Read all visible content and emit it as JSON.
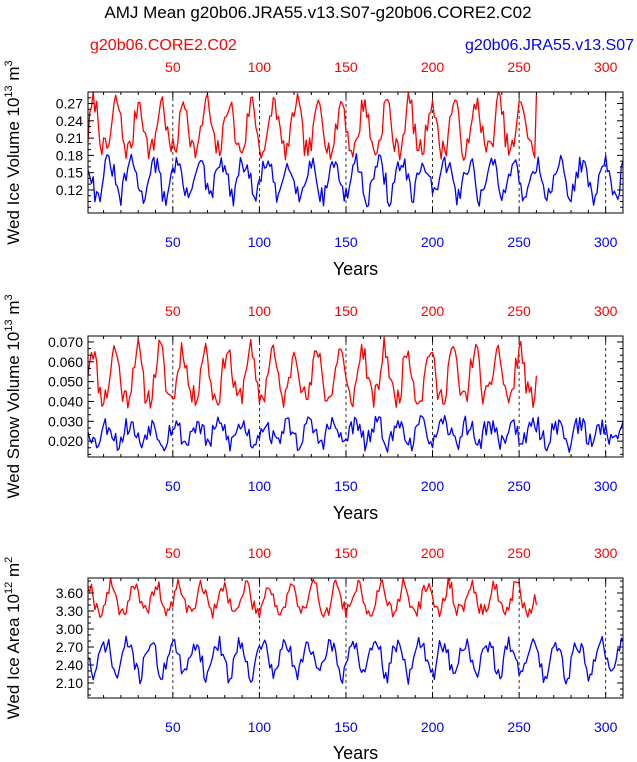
{
  "title": "AMJ Mean g20b06.JRA55.v13.S07-g20b06.CORE2.C02",
  "legend": {
    "red_case": "g20b06.CORE2.C02",
    "blue_case": "g20b06.JRA55.v13.S07"
  },
  "colors": {
    "red": "#ff0000",
    "blue": "#0000ff"
  },
  "chart_data": [
    {
      "type": "line",
      "ylabel_main": "Wed Ice Volume 10",
      "ylabel_exp": "13",
      "ylabel_unit": " m",
      "ylabel_unit_exp": "3",
      "xlabel": "Years",
      "xlim": [
        1,
        310
      ],
      "ylim": [
        0.08,
        0.29
      ],
      "x_ticks": [
        50,
        100,
        150,
        200,
        250,
        300
      ],
      "x_tick_labels": [
        "50",
        "100",
        "150",
        "200",
        "250",
        "300"
      ],
      "y_ticks": [
        0.12,
        0.15,
        0.18,
        0.21,
        0.24,
        0.27
      ],
      "y_tick_labels": [
        "0.12",
        "0.15",
        "0.18",
        "0.21",
        "0.24",
        "0.27"
      ],
      "series": [
        {
          "name": "g20b06.CORE2.C02",
          "color": "#ff0000",
          "x_end": 260,
          "base": 0.19,
          "amp": 0.085,
          "period": 13,
          "phase": 2,
          "noise": 0.02,
          "seed": 7,
          "floor": 0.14,
          "final": 0.285
        },
        {
          "name": "g20b06.JRA55.v13.S07",
          "color": "#0000ff",
          "x_end": 310,
          "base": 0.165,
          "amp": -0.06,
          "period": 13,
          "phase": 0,
          "noise": 0.018,
          "seed": 31,
          "floor": 0.08,
          "final": 0.17
        }
      ]
    },
    {
      "type": "line",
      "ylabel_main": "Wed Snow Volume 10",
      "ylabel_exp": "13",
      "ylabel_unit": " m",
      "ylabel_unit_exp": "3",
      "xlabel": "Years",
      "xlim": [
        1,
        310
      ],
      "ylim": [
        0.012,
        0.073
      ],
      "x_ticks": [
        50,
        100,
        150,
        200,
        250,
        300
      ],
      "x_tick_labels": [
        "50",
        "100",
        "150",
        "200",
        "250",
        "300"
      ],
      "y_ticks": [
        0.02,
        0.03,
        0.04,
        0.05,
        0.06,
        0.07
      ],
      "y_tick_labels": [
        "0.020",
        "0.030",
        "0.040",
        "0.050",
        "0.060",
        "0.070"
      ],
      "series": [
        {
          "name": "g20b06.CORE2.C02",
          "color": "#ff0000",
          "x_end": 260,
          "base": 0.042,
          "amp": 0.025,
          "period": 13,
          "phase": 3,
          "noise": 0.006,
          "seed": 11,
          "floor": 0.028,
          "final": 0.053
        },
        {
          "name": "g20b06.JRA55.v13.S07",
          "color": "#0000ff",
          "x_end": 310,
          "base": 0.028,
          "amp": -0.009,
          "period": 13,
          "phase": 1,
          "noise": 0.005,
          "seed": 53,
          "floor": 0.014,
          "final": 0.03
        }
      ]
    },
    {
      "type": "line",
      "ylabel_main": "Wed Ice Area 10",
      "ylabel_exp": "12",
      "ylabel_unit": " m",
      "ylabel_unit_exp": "2",
      "xlabel": "Years",
      "xlim": [
        1,
        310
      ],
      "ylim": [
        1.85,
        3.85
      ],
      "x_ticks": [
        50,
        100,
        150,
        200,
        250,
        300
      ],
      "x_tick_labels": [
        "50",
        "100",
        "150",
        "200",
        "250",
        "300"
      ],
      "y_ticks": [
        2.1,
        2.4,
        2.7,
        3.0,
        3.3,
        3.6
      ],
      "y_tick_labels": [
        "2.10",
        "2.40",
        "2.70",
        "3.00",
        "3.30",
        "3.60"
      ],
      "series": [
        {
          "name": "g20b06.CORE2.C02",
          "color": "#ff0000",
          "x_end": 260,
          "base": 3.3,
          "amp": 0.45,
          "period": 13,
          "phase": 5,
          "noise": 0.12,
          "seed": 19,
          "floor": 2.6,
          "final": 3.4
        },
        {
          "name": "g20b06.JRA55.v13.S07",
          "color": "#0000ff",
          "x_end": 310,
          "base": 2.75,
          "amp": -0.55,
          "period": 13,
          "phase": 2,
          "noise": 0.14,
          "seed": 71,
          "floor": 1.95,
          "final": 2.8
        }
      ]
    }
  ]
}
